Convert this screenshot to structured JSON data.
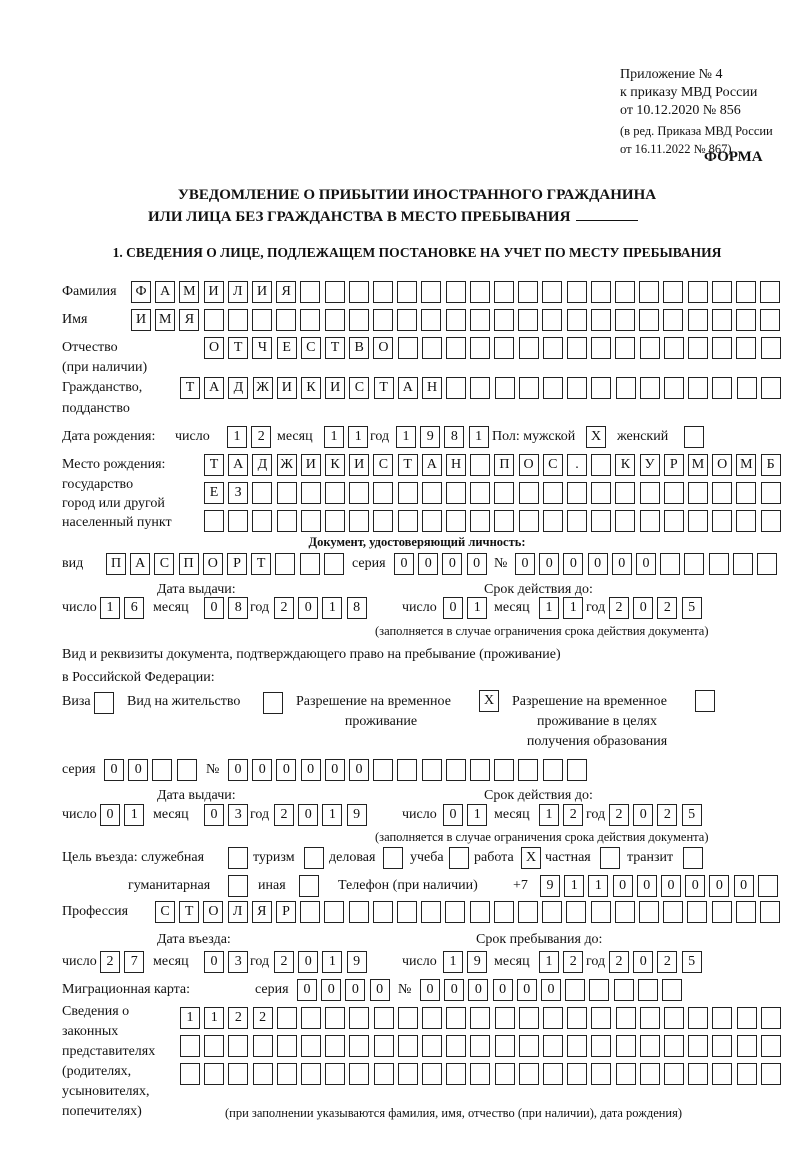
{
  "header": {
    "appendix": [
      "Приложение № 4",
      "к приказу МВД России",
      "от 10.12.2020 № 856"
    ],
    "edition": [
      "(в ред. Приказа МВД России",
      "от 16.11.2022 № 867)"
    ],
    "form_label": "ФОРМА",
    "title": [
      "УВЕДОМЛЕНИЕ О ПРИБЫТИИ ИНОСТРАННОГО ГРАЖДАНИНА",
      "ИЛИ ЛИЦА БЕЗ ГРАЖДАНСТВА В МЕСТО ПРЕБЫВАНИЯ"
    ],
    "section1": "1. СВЕДЕНИЯ О ЛИЦЕ, ПОДЛЕЖАЩЕМ ПОСТАНОВКЕ НА УЧЕТ ПО МЕСТУ ПРЕБЫВАНИЯ"
  },
  "labels": {
    "surname": "Фамилия",
    "name": "Имя",
    "patronymic": [
      "Отчество",
      "(при наличии)"
    ],
    "citizenship": [
      "Гражданство,",
      "подданство"
    ],
    "birth_date": "Дата рождения:",
    "day": "число",
    "month": "месяц",
    "year": "год",
    "sex": "Пол: мужской",
    "female": "женский",
    "birth_place": [
      "Место рождения:",
      "государство",
      "город или другой",
      "населенный пункт"
    ],
    "id_doc": "Документ, удостоверяющий личность:",
    "kind": "вид",
    "series": "серия",
    "number": "№",
    "issue_date": "Дата выдачи:",
    "valid_until": "Срок действия до:",
    "valid_note": "(заполняется в случае ограничения срока действия документа)",
    "right_doc": [
      "Вид и реквизиты документа, подтверждающего право на пребывание (проживание)",
      "в Российской Федерации:"
    ],
    "visa": "Виза",
    "residence": "Вид на жительство",
    "temp_residence": [
      "Разрешение на временное",
      "проживание"
    ],
    "temp_residence_edu": [
      "Разрешение на временное",
      "проживание в целях",
      "получения образования"
    ],
    "purpose": "Цель въезда: служебная",
    "tourism": "туризм",
    "business": "деловая",
    "study": "учеба",
    "work": "работа",
    "private": "частная",
    "transit": "транзит",
    "humanitarian": "гуманитарная",
    "other": "иная",
    "phone": "Телефон (при наличии)",
    "phone_prefix": "+7",
    "profession": "Профессия",
    "entry_date": "Дата въезда:",
    "stay_until": "Срок пребывания до:",
    "migration_card": "Миграционная карта:",
    "representatives": [
      "Сведения о",
      "законных",
      "представителях",
      "(родителях,",
      "усыновителях,",
      "попечителях)"
    ],
    "rep_note": "(при заполнении указываются фамилия, имя, отчество (при наличии), дата рождения)"
  },
  "person": {
    "surname": [
      "Ф",
      "А",
      "М",
      "И",
      "Л",
      "И",
      "Я"
    ],
    "name": [
      "И",
      "М",
      "Я"
    ],
    "patronymic": [
      "О",
      "Т",
      "Ч",
      "Е",
      "С",
      "Т",
      "В",
      "О"
    ],
    "citizenship": [
      "Т",
      "А",
      "Д",
      "Ж",
      "И",
      "К",
      "И",
      "С",
      "Т",
      "А",
      "Н"
    ],
    "birth_day": [
      "1",
      "2"
    ],
    "birth_month": [
      "1",
      "1"
    ],
    "birth_year": [
      "1",
      "9",
      "8",
      "1"
    ],
    "sex_male": [
      "X"
    ],
    "sex_female": [],
    "birth_place_1": [
      "Т",
      "А",
      "Д",
      "Ж",
      "И",
      "К",
      "И",
      "С",
      "Т",
      "А",
      "Н",
      "",
      "П",
      "О",
      "С",
      ".",
      "",
      "К",
      "У",
      "Р",
      "М",
      "О",
      "М",
      "Б"
    ],
    "birth_place_2": [
      "Е",
      "З"
    ],
    "birth_place_3": []
  },
  "id_document": {
    "kind": [
      "П",
      "А",
      "С",
      "П",
      "О",
      "Р",
      "Т"
    ],
    "series": [
      "0",
      "0",
      "0",
      "0"
    ],
    "number": [
      "0",
      "0",
      "0",
      "0",
      "0",
      "0"
    ],
    "issue_day": [
      "1",
      "6"
    ],
    "issue_month": [
      "0",
      "8"
    ],
    "issue_year": [
      "2",
      "0",
      "1",
      "8"
    ],
    "valid_day": [
      "0",
      "1"
    ],
    "valid_month": [
      "1",
      "1"
    ],
    "valid_year": [
      "2",
      "0",
      "2",
      "5"
    ]
  },
  "right_document": {
    "visa": [],
    "residence": [],
    "temp_residence": [
      "X"
    ],
    "temp_residence_edu": [],
    "series": [
      "0",
      "0"
    ],
    "number": [
      "0",
      "0",
      "0",
      "0",
      "0",
      "0"
    ],
    "issue_day": [
      "0",
      "1"
    ],
    "issue_month": [
      "0",
      "3"
    ],
    "issue_year": [
      "2",
      "0",
      "1",
      "9"
    ],
    "valid_day": [
      "0",
      "1"
    ],
    "valid_month": [
      "1",
      "2"
    ],
    "valid_year": [
      "2",
      "0",
      "2",
      "5"
    ]
  },
  "purpose": {
    "official": [],
    "tourism": [],
    "business": [],
    "study": [],
    "work": [
      "X"
    ],
    "private": [],
    "transit": [],
    "humanitarian": [],
    "other": []
  },
  "phone": [
    "9",
    "1",
    "1",
    "0",
    "0",
    "0",
    "0",
    "0",
    "0"
  ],
  "profession": [
    "С",
    "Т",
    "О",
    "Л",
    "Я",
    "Р"
  ],
  "entry": {
    "entry_day": [
      "2",
      "7"
    ],
    "entry_month": [
      "0",
      "3"
    ],
    "entry_year": [
      "2",
      "0",
      "1",
      "9"
    ],
    "stay_day": [
      "1",
      "9"
    ],
    "stay_month": [
      "1",
      "2"
    ],
    "stay_year": [
      "2",
      "0",
      "2",
      "5"
    ]
  },
  "migration_card": {
    "series": [
      "0",
      "0",
      "0",
      "0"
    ],
    "number": [
      "0",
      "0",
      "0",
      "0",
      "0",
      "0"
    ]
  },
  "representatives": {
    "row1": [
      "1",
      "1",
      "2",
      "2"
    ],
    "row2": [],
    "row3": []
  }
}
